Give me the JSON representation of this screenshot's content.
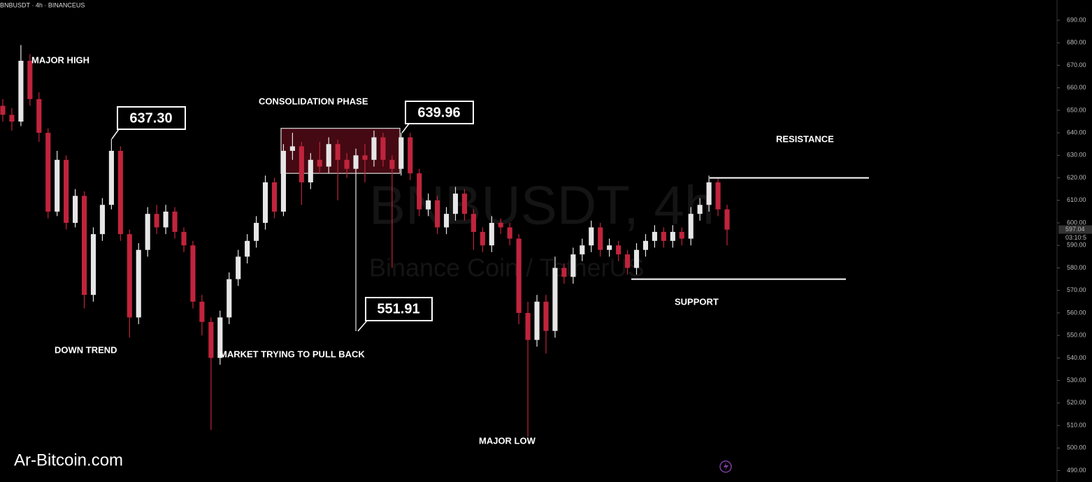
{
  "chart_data": {
    "type": "candlestick",
    "title": "BNBUSDT · 4h · BINANCEUS",
    "watermark": "BNBUSDT, 4h",
    "watermark_subtitle": "Binance Coin / TetherUS",
    "footer": "Ar-Bitcoin.com",
    "up_color": "#e6e6e6",
    "down_color": "#c0243c",
    "ylim": [
      488,
      699
    ],
    "yticks": [
      {
        "value": 490,
        "label": "490.00"
      },
      {
        "value": 500,
        "label": "500.00"
      },
      {
        "value": 510,
        "label": "510.00"
      },
      {
        "value": 520,
        "label": "520.00"
      },
      {
        "value": 530,
        "label": "530.00"
      },
      {
        "value": 540,
        "label": "540.00"
      },
      {
        "value": 550,
        "label": "550.00"
      },
      {
        "value": 560,
        "label": "560.00"
      },
      {
        "value": 570,
        "label": "570.00"
      },
      {
        "value": 580,
        "label": "580.00"
      },
      {
        "value": 590,
        "label": "590.00"
      },
      {
        "value": 600,
        "label": "600.00"
      },
      {
        "value": 610,
        "label": "610.00"
      },
      {
        "value": 620,
        "label": "620.00"
      },
      {
        "value": 630,
        "label": "630.00"
      },
      {
        "value": 640,
        "label": "640.00"
      },
      {
        "value": 650,
        "label": "650.00"
      },
      {
        "value": 660,
        "label": "660.00"
      },
      {
        "value": 670,
        "label": "670.00"
      },
      {
        "value": 680,
        "label": "680.00"
      },
      {
        "value": 690,
        "label": "690.00"
      }
    ],
    "open": [
      652,
      648,
      645,
      672,
      655,
      640,
      605,
      628,
      600,
      612,
      568,
      595,
      608,
      632,
      595,
      558,
      588,
      604,
      598,
      605,
      596,
      590,
      565,
      556,
      540,
      558,
      575,
      585,
      592,
      600,
      618,
      605,
      632,
      634,
      618,
      628,
      625,
      635,
      628,
      624,
      630,
      628,
      638,
      628,
      624,
      638,
      622,
      606,
      610,
      598,
      604,
      613,
      604,
      596,
      590,
      600,
      598,
      593,
      560,
      548,
      565,
      552,
      580,
      576,
      586,
      590,
      598,
      588,
      590,
      586,
      580,
      588,
      592,
      596,
      592,
      596,
      593,
      604,
      608,
      618,
      606
    ],
    "high": [
      655,
      651,
      679,
      675,
      658,
      642,
      632,
      630,
      615,
      614,
      598,
      611,
      637.3,
      634,
      597,
      591,
      607,
      608,
      608,
      607,
      598,
      592,
      568,
      558,
      561,
      578,
      588,
      595,
      603,
      621,
      620,
      635,
      640,
      636,
      631,
      636,
      638,
      637,
      631,
      633,
      635,
      641,
      640,
      630,
      639.96,
      640,
      624,
      613,
      612,
      607,
      616,
      615,
      606,
      598,
      603,
      602,
      600,
      595,
      565,
      568,
      568,
      585,
      582,
      589,
      593,
      601,
      600,
      593,
      592,
      588,
      591,
      595,
      599,
      598,
      599,
      598,
      607,
      611,
      621,
      620,
      608
    ],
    "low": [
      645,
      641,
      643,
      652,
      636,
      602,
      603,
      597,
      598,
      562,
      565,
      592,
      606,
      592,
      549,
      555,
      585,
      595,
      595,
      593,
      587,
      562,
      550,
      508,
      537,
      555,
      572,
      582,
      589,
      597,
      602,
      603,
      628,
      608,
      615,
      622,
      622,
      610,
      620,
      551.91,
      618,
      625,
      625,
      580,
      621,
      619,
      603,
      603,
      595,
      595,
      601,
      601,
      588,
      587,
      587,
      595,
      590,
      555,
      505,
      545,
      542,
      549,
      573,
      573,
      583,
      587,
      585,
      585,
      583,
      577,
      577,
      585,
      589,
      589,
      589,
      590,
      590,
      601,
      605,
      603,
      590
    ],
    "close": [
      648,
      645,
      672,
      655,
      640,
      605,
      628,
      600,
      612,
      568,
      595,
      608,
      632,
      595,
      558,
      588,
      604,
      598,
      605,
      596,
      590,
      565,
      556,
      540,
      558,
      575,
      585,
      592,
      600,
      618,
      605,
      632,
      634,
      618,
      628,
      625,
      635,
      628,
      624,
      630,
      628,
      638,
      628,
      624,
      638,
      622,
      606,
      610,
      598,
      604,
      613,
      604,
      596,
      590,
      600,
      598,
      593,
      560,
      548,
      565,
      552,
      580,
      576,
      586,
      590,
      598,
      588,
      590,
      586,
      580,
      588,
      592,
      596,
      592,
      596,
      593,
      604,
      608,
      618,
      606,
      597
    ],
    "current_price": {
      "value": 597.04,
      "label": "597.04"
    },
    "countdown": "03:10:5",
    "callouts": [
      {
        "value": 637.3,
        "label": "637.30"
      },
      {
        "value": 639.96,
        "label": "639.96"
      },
      {
        "value": 551.91,
        "label": "551.91"
      }
    ],
    "consolidation": {
      "label": "CONSOLIDATION PHASE",
      "top": 642,
      "bottom": 622
    },
    "resistance": {
      "label": "RESISTANCE",
      "value": 620
    },
    "support": {
      "label": "SUPPORT",
      "value": 575
    },
    "annotations": [
      "MAJOR HIGH",
      "DOWN TREND",
      "MARKET TRYING TO PULL BACK",
      "MAJOR LOW"
    ]
  }
}
